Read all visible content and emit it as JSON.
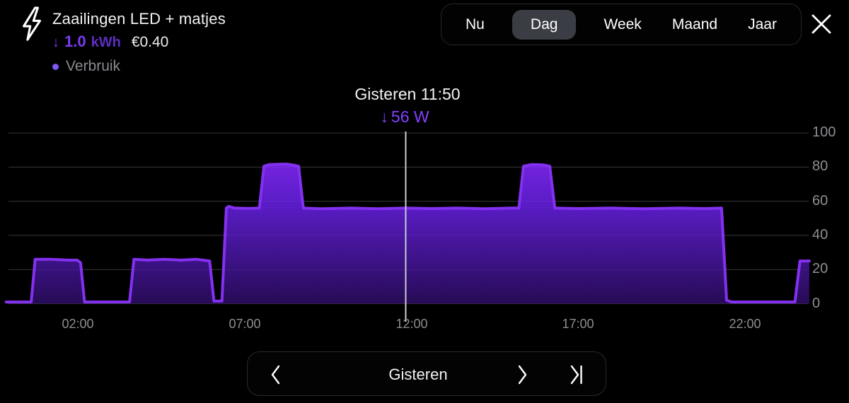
{
  "header": {
    "title": "Zaailingen LED + matjes",
    "delta_arrow": "↓",
    "energy_value": "1.0",
    "energy_unit": "kWh",
    "cost": "€0.40",
    "legend_label": "Verbruik"
  },
  "tabs": {
    "items": [
      {
        "label": "Nu",
        "active": false
      },
      {
        "label": "Dag",
        "active": true
      },
      {
        "label": "Week",
        "active": false
      },
      {
        "label": "Maand",
        "active": false
      },
      {
        "label": "Jaar",
        "active": false
      }
    ]
  },
  "tooltip": {
    "title": "Gisteren 11:50",
    "arrow": "↓",
    "value": "56 W"
  },
  "bottom_nav": {
    "label": "Gisteren"
  },
  "colors": {
    "accent_purple": "#7a3bf0",
    "unit_purple": "#5c2ec2",
    "tooltip_purple": "#8340ff",
    "legend_dot": "#7e57f5",
    "line": "#8430f0",
    "fill_top": "#8629f0",
    "fill_mid": "#5a1cc6",
    "fill_bottom": "#260b55",
    "grid": "#2d2d30",
    "cursor": "#caccd0",
    "tab_active_bg": "#3a3d44",
    "muted_text": "#8e8e93"
  },
  "chart_data": {
    "type": "area",
    "title": "Verbruik (power, W) over one day — Gisteren",
    "series_name": "Verbruik",
    "unit": "W",
    "xlim_hours": [
      -0.15,
      23.93
    ],
    "ylim": [
      0,
      100
    ],
    "y_ticks": [
      0,
      20,
      40,
      60,
      80,
      100
    ],
    "x_ticks": [
      "02:00",
      "07:00",
      "12:00",
      "17:00",
      "22:00"
    ],
    "x_tick_hours": [
      2,
      7,
      12,
      17,
      22
    ],
    "grid": true,
    "legend_position": "top-left",
    "cursor": {
      "hour": 11.83,
      "label": "Gisteren 11:50",
      "value_w": 56
    },
    "series": [
      {
        "name": "Verbruik",
        "points": [
          [
            -0.15,
            1
          ],
          [
            0.6,
            1
          ],
          [
            0.72,
            26
          ],
          [
            1.2,
            26
          ],
          [
            1.7,
            25.5
          ],
          [
            1.98,
            25.5
          ],
          [
            2.08,
            24
          ],
          [
            2.2,
            1
          ],
          [
            3.55,
            1
          ],
          [
            3.68,
            26
          ],
          [
            4.1,
            25.5
          ],
          [
            4.6,
            26
          ],
          [
            5.1,
            25.5
          ],
          [
            5.55,
            26
          ],
          [
            5.95,
            25
          ],
          [
            6.08,
            1.5
          ],
          [
            6.32,
            1.5
          ],
          [
            6.45,
            56
          ],
          [
            6.52,
            57
          ],
          [
            6.7,
            56
          ],
          [
            7.1,
            55.8
          ],
          [
            7.44,
            56
          ],
          [
            7.58,
            80.5
          ],
          [
            7.75,
            81.5
          ],
          [
            8.25,
            81.8
          ],
          [
            8.5,
            81
          ],
          [
            8.62,
            80.5
          ],
          [
            8.76,
            56
          ],
          [
            9.3,
            55.6
          ],
          [
            10.2,
            56
          ],
          [
            11.0,
            55.6
          ],
          [
            11.83,
            56
          ],
          [
            12.6,
            55.7
          ],
          [
            13.4,
            56
          ],
          [
            14.2,
            55.6
          ],
          [
            15.0,
            56
          ],
          [
            15.22,
            56
          ],
          [
            15.36,
            80.5
          ],
          [
            15.6,
            81.5
          ],
          [
            15.95,
            81.3
          ],
          [
            16.15,
            80.5
          ],
          [
            16.3,
            56
          ],
          [
            17.0,
            55.7
          ],
          [
            18.0,
            56
          ],
          [
            19.0,
            55.6
          ],
          [
            20.0,
            56
          ],
          [
            20.8,
            55.7
          ],
          [
            21.3,
            56
          ],
          [
            21.45,
            2
          ],
          [
            21.6,
            1
          ],
          [
            23.5,
            1
          ],
          [
            23.65,
            25
          ],
          [
            23.93,
            25
          ]
        ]
      }
    ]
  }
}
